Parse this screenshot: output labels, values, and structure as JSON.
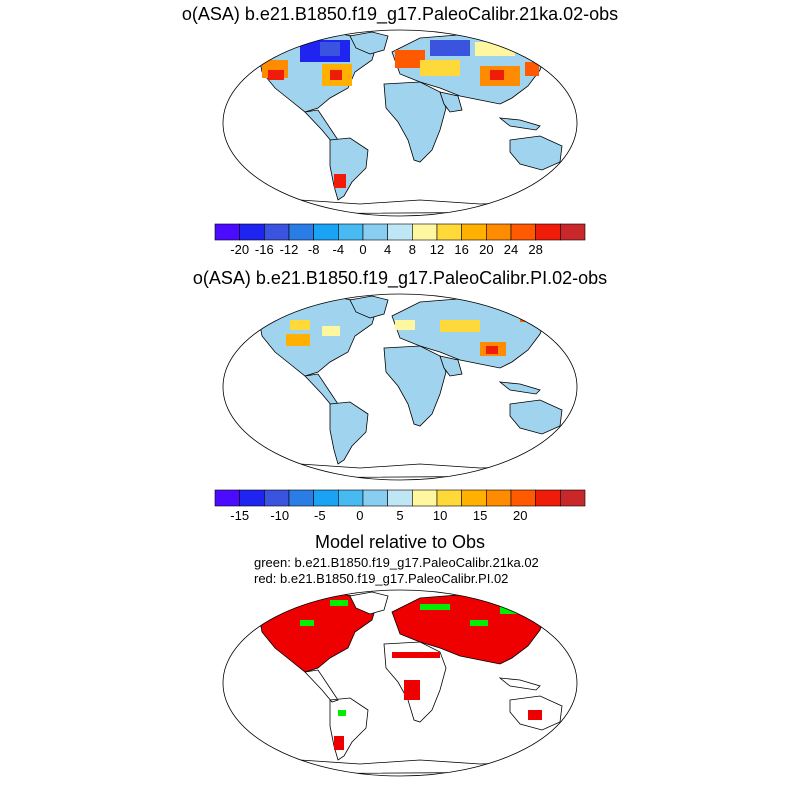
{
  "panels": [
    {
      "title": "o(ASA) b.e21.B1850.f19_g17.PaleoCalibr.21ka.02-obs",
      "colorbar": {
        "colors": [
          "#4b0bff",
          "#1f24f0",
          "#3b54e0",
          "#2b7de6",
          "#1aa3f5",
          "#47baf2",
          "#89cdf0",
          "#bfe6f5",
          "#fff6a0",
          "#ffd83a",
          "#ffb000",
          "#ff8c00",
          "#ff5a00",
          "#ee1c08",
          "#c8282a"
        ],
        "labels": [
          "-20",
          "-16",
          "-12",
          "-8",
          "-4",
          "0",
          "4",
          "8",
          "12",
          "16",
          "20",
          "24",
          "28"
        ]
      }
    },
    {
      "title": "o(ASA) b.e21.B1850.f19_g17.PaleoCalibr.PI.02-obs",
      "colorbar": {
        "colors": [
          "#4b0bff",
          "#1f24f0",
          "#3b54e0",
          "#2b7de6",
          "#1aa3f5",
          "#47baf2",
          "#89cdf0",
          "#bfe6f5",
          "#fff6a0",
          "#ffd83a",
          "#ffb000",
          "#ff8c00",
          "#ff5a00",
          "#ee1c08",
          "#c8282a"
        ],
        "labels": [
          "-15",
          "-10",
          "-5",
          "0",
          "5",
          "10",
          "15",
          "20"
        ]
      }
    },
    {
      "title": "Model relative to Obs",
      "subtitle_green": "green: b.e21.B1850.f19_g17.PaleoCalibr.21ka.02",
      "subtitle_red": "red: b.e21.B1850.f19_g17.PaleoCalibr.PI.02"
    }
  ],
  "colors": {
    "land_base": "#9fd3ee",
    "land_outline": "#000000",
    "green": "#00ee00",
    "red": "#ee0000"
  }
}
